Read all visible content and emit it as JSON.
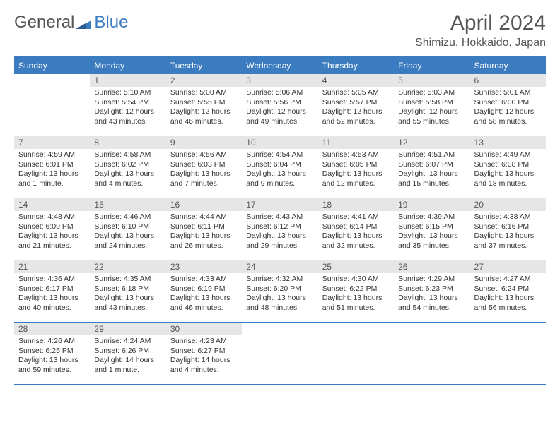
{
  "logo": {
    "part1": "General",
    "part2": "Blue"
  },
  "title": "April 2024",
  "location": "Shimizu, Hokkaido, Japan",
  "colors": {
    "header_bg": "#3b7bbf",
    "header_text": "#ffffff",
    "daynum_bg": "#e6e6e6",
    "rule": "#3b7bbf",
    "text": "#333333",
    "title_text": "#555555"
  },
  "weekdays": [
    "Sunday",
    "Monday",
    "Tuesday",
    "Wednesday",
    "Thursday",
    "Friday",
    "Saturday"
  ],
  "weeks": [
    [
      {
        "day": "",
        "sunrise": "",
        "sunset": "",
        "daylight": ""
      },
      {
        "day": "1",
        "sunrise": "Sunrise: 5:10 AM",
        "sunset": "Sunset: 5:54 PM",
        "daylight": "Daylight: 12 hours and 43 minutes."
      },
      {
        "day": "2",
        "sunrise": "Sunrise: 5:08 AM",
        "sunset": "Sunset: 5:55 PM",
        "daylight": "Daylight: 12 hours and 46 minutes."
      },
      {
        "day": "3",
        "sunrise": "Sunrise: 5:06 AM",
        "sunset": "Sunset: 5:56 PM",
        "daylight": "Daylight: 12 hours and 49 minutes."
      },
      {
        "day": "4",
        "sunrise": "Sunrise: 5:05 AM",
        "sunset": "Sunset: 5:57 PM",
        "daylight": "Daylight: 12 hours and 52 minutes."
      },
      {
        "day": "5",
        "sunrise": "Sunrise: 5:03 AM",
        "sunset": "Sunset: 5:58 PM",
        "daylight": "Daylight: 12 hours and 55 minutes."
      },
      {
        "day": "6",
        "sunrise": "Sunrise: 5:01 AM",
        "sunset": "Sunset: 6:00 PM",
        "daylight": "Daylight: 12 hours and 58 minutes."
      }
    ],
    [
      {
        "day": "7",
        "sunrise": "Sunrise: 4:59 AM",
        "sunset": "Sunset: 6:01 PM",
        "daylight": "Daylight: 13 hours and 1 minute."
      },
      {
        "day": "8",
        "sunrise": "Sunrise: 4:58 AM",
        "sunset": "Sunset: 6:02 PM",
        "daylight": "Daylight: 13 hours and 4 minutes."
      },
      {
        "day": "9",
        "sunrise": "Sunrise: 4:56 AM",
        "sunset": "Sunset: 6:03 PM",
        "daylight": "Daylight: 13 hours and 7 minutes."
      },
      {
        "day": "10",
        "sunrise": "Sunrise: 4:54 AM",
        "sunset": "Sunset: 6:04 PM",
        "daylight": "Daylight: 13 hours and 9 minutes."
      },
      {
        "day": "11",
        "sunrise": "Sunrise: 4:53 AM",
        "sunset": "Sunset: 6:05 PM",
        "daylight": "Daylight: 13 hours and 12 minutes."
      },
      {
        "day": "12",
        "sunrise": "Sunrise: 4:51 AM",
        "sunset": "Sunset: 6:07 PM",
        "daylight": "Daylight: 13 hours and 15 minutes."
      },
      {
        "day": "13",
        "sunrise": "Sunrise: 4:49 AM",
        "sunset": "Sunset: 6:08 PM",
        "daylight": "Daylight: 13 hours and 18 minutes."
      }
    ],
    [
      {
        "day": "14",
        "sunrise": "Sunrise: 4:48 AM",
        "sunset": "Sunset: 6:09 PM",
        "daylight": "Daylight: 13 hours and 21 minutes."
      },
      {
        "day": "15",
        "sunrise": "Sunrise: 4:46 AM",
        "sunset": "Sunset: 6:10 PM",
        "daylight": "Daylight: 13 hours and 24 minutes."
      },
      {
        "day": "16",
        "sunrise": "Sunrise: 4:44 AM",
        "sunset": "Sunset: 6:11 PM",
        "daylight": "Daylight: 13 hours and 26 minutes."
      },
      {
        "day": "17",
        "sunrise": "Sunrise: 4:43 AM",
        "sunset": "Sunset: 6:12 PM",
        "daylight": "Daylight: 13 hours and 29 minutes."
      },
      {
        "day": "18",
        "sunrise": "Sunrise: 4:41 AM",
        "sunset": "Sunset: 6:14 PM",
        "daylight": "Daylight: 13 hours and 32 minutes."
      },
      {
        "day": "19",
        "sunrise": "Sunrise: 4:39 AM",
        "sunset": "Sunset: 6:15 PM",
        "daylight": "Daylight: 13 hours and 35 minutes."
      },
      {
        "day": "20",
        "sunrise": "Sunrise: 4:38 AM",
        "sunset": "Sunset: 6:16 PM",
        "daylight": "Daylight: 13 hours and 37 minutes."
      }
    ],
    [
      {
        "day": "21",
        "sunrise": "Sunrise: 4:36 AM",
        "sunset": "Sunset: 6:17 PM",
        "daylight": "Daylight: 13 hours and 40 minutes."
      },
      {
        "day": "22",
        "sunrise": "Sunrise: 4:35 AM",
        "sunset": "Sunset: 6:18 PM",
        "daylight": "Daylight: 13 hours and 43 minutes."
      },
      {
        "day": "23",
        "sunrise": "Sunrise: 4:33 AM",
        "sunset": "Sunset: 6:19 PM",
        "daylight": "Daylight: 13 hours and 46 minutes."
      },
      {
        "day": "24",
        "sunrise": "Sunrise: 4:32 AM",
        "sunset": "Sunset: 6:20 PM",
        "daylight": "Daylight: 13 hours and 48 minutes."
      },
      {
        "day": "25",
        "sunrise": "Sunrise: 4:30 AM",
        "sunset": "Sunset: 6:22 PM",
        "daylight": "Daylight: 13 hours and 51 minutes."
      },
      {
        "day": "26",
        "sunrise": "Sunrise: 4:29 AM",
        "sunset": "Sunset: 6:23 PM",
        "daylight": "Daylight: 13 hours and 54 minutes."
      },
      {
        "day": "27",
        "sunrise": "Sunrise: 4:27 AM",
        "sunset": "Sunset: 6:24 PM",
        "daylight": "Daylight: 13 hours and 56 minutes."
      }
    ],
    [
      {
        "day": "28",
        "sunrise": "Sunrise: 4:26 AM",
        "sunset": "Sunset: 6:25 PM",
        "daylight": "Daylight: 13 hours and 59 minutes."
      },
      {
        "day": "29",
        "sunrise": "Sunrise: 4:24 AM",
        "sunset": "Sunset: 6:26 PM",
        "daylight": "Daylight: 14 hours and 1 minute."
      },
      {
        "day": "30",
        "sunrise": "Sunrise: 4:23 AM",
        "sunset": "Sunset: 6:27 PM",
        "daylight": "Daylight: 14 hours and 4 minutes."
      },
      {
        "day": "",
        "sunrise": "",
        "sunset": "",
        "daylight": ""
      },
      {
        "day": "",
        "sunrise": "",
        "sunset": "",
        "daylight": ""
      },
      {
        "day": "",
        "sunrise": "",
        "sunset": "",
        "daylight": ""
      },
      {
        "day": "",
        "sunrise": "",
        "sunset": "",
        "daylight": ""
      }
    ]
  ]
}
